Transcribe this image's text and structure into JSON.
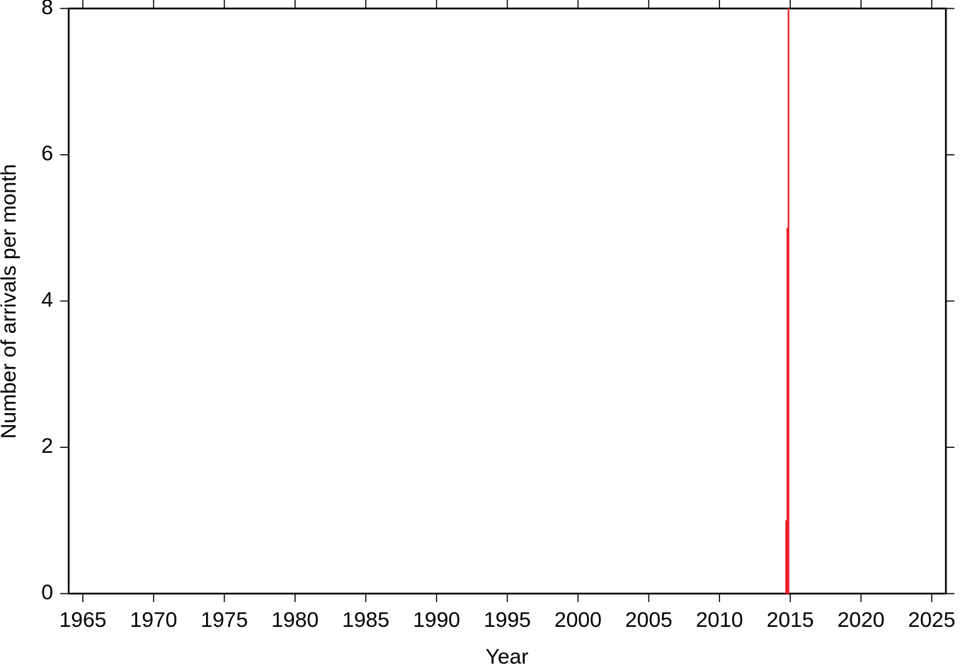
{
  "chart_data": {
    "type": "histogram",
    "xlabel": "Year",
    "ylabel": "Number of arrivals per month",
    "bins": [
      2014.667,
      2014.75,
      2014.833,
      2014.917
    ],
    "values": [
      1,
      5,
      8
    ],
    "color": "#ee1c24",
    "xlim": [
      1964,
      2026
    ],
    "xticks": [
      1965,
      1970,
      1975,
      1980,
      1985,
      1990,
      1995,
      2000,
      2005,
      2010,
      2015,
      2020,
      2025
    ],
    "ylim": [
      0,
      8
    ],
    "yticks": [
      0,
      2,
      4,
      6,
      8
    ]
  }
}
